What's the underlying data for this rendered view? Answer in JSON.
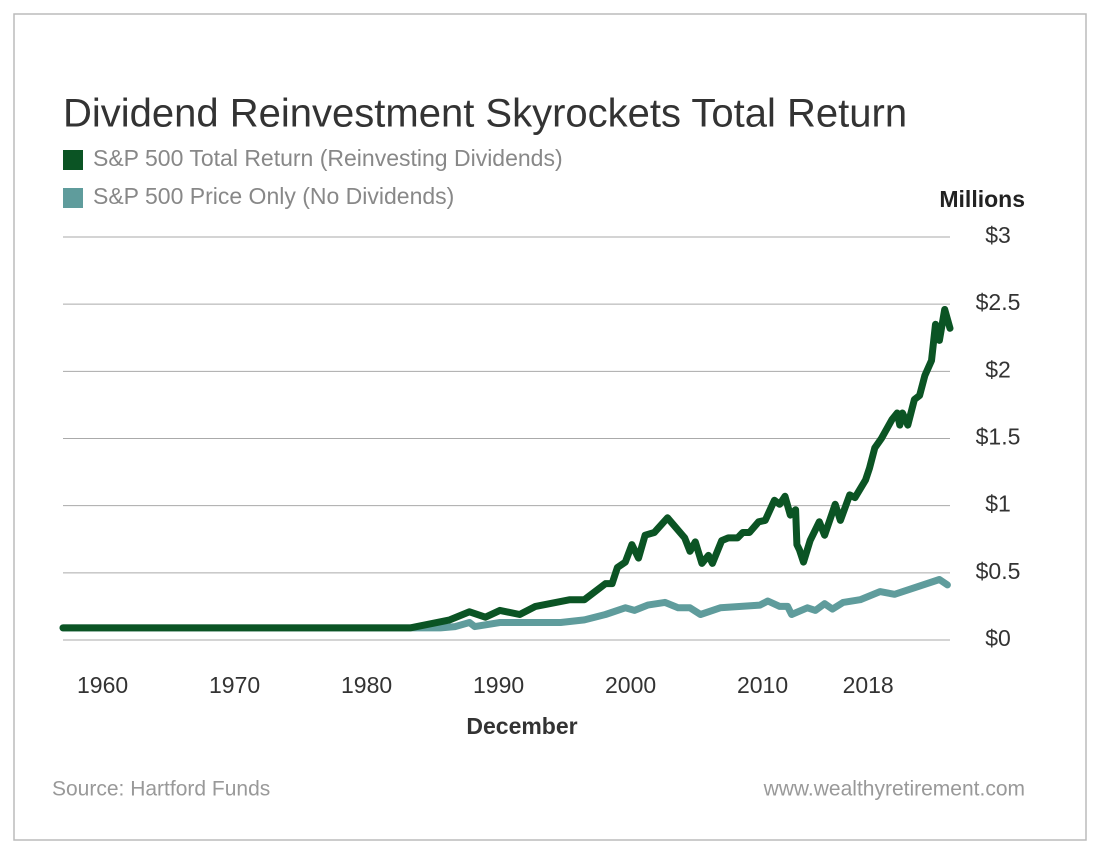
{
  "chart_data": {
    "type": "line",
    "title": "Dividend Reinvestment Skyrockets Total Return",
    "y_axis_label": "Millions",
    "x_axis_label": "December",
    "source": "Source: Hartford Funds",
    "website": "www.wealthyretirement.com",
    "legend": "top-left",
    "grid": true,
    "xlim": [
      1957,
      2024.2
    ],
    "xticks": [
      1960,
      1970,
      1980,
      1990,
      2000,
      2010,
      2018
    ],
    "ylim": [
      0,
      3
    ],
    "yticks": [
      {
        "value": 0,
        "label": "$0"
      },
      {
        "value": 0.5,
        "label": "$0.5"
      },
      {
        "value": 1,
        "label": "$1"
      },
      {
        "value": 1.5,
        "label": "$1.5"
      },
      {
        "value": 2,
        "label": "$2"
      },
      {
        "value": 2.5,
        "label": "$2.5"
      },
      {
        "value": 3,
        "label": "$3"
      }
    ],
    "series": [
      {
        "name": "S&P 500 Total Return (Reinvesting Dividends)",
        "color": "#0b5424",
        "x": [
          1957,
          1983.3,
          1986.3,
          1987.8,
          1989,
          1990.1,
          1991.6,
          1992.8,
          1995.4,
          1996.5,
          1998.1,
          1998.6,
          1999,
          1999.6,
          2000.1,
          2000.6,
          2001.1,
          2001.8,
          2002.8,
          2004.1,
          2004.5,
          2004.9,
          2005.4,
          2005.9,
          2006.2,
          2006.9,
          2007.4,
          2008.1,
          2008.5,
          2009,
          2009.7,
          2010.2,
          2010.9,
          2011.3,
          2011.7,
          2012.1,
          2012.5,
          2012.6,
          2012.8,
          2013.1,
          2013.6,
          2014.3,
          2014.7,
          2015.5,
          2015.9,
          2016.6,
          2017,
          2017.8,
          2018.1,
          2018.5,
          2019,
          2019.8,
          2020.2,
          2020.4,
          2020.6,
          2021,
          2021.5,
          2021.9,
          2022.3,
          2022.8,
          2023.1,
          2023.4,
          2023.8,
          2024.2
        ],
        "values": [
          0.09,
          0.09,
          0.15,
          0.21,
          0.17,
          0.22,
          0.19,
          0.25,
          0.3,
          0.3,
          0.42,
          0.42,
          0.54,
          0.58,
          0.71,
          0.61,
          0.78,
          0.8,
          0.91,
          0.76,
          0.66,
          0.73,
          0.57,
          0.63,
          0.57,
          0.74,
          0.76,
          0.76,
          0.8,
          0.8,
          0.88,
          0.89,
          1.04,
          1.01,
          1.07,
          0.93,
          0.97,
          0.71,
          0.67,
          0.58,
          0.74,
          0.88,
          0.78,
          1.01,
          0.89,
          1.08,
          1.06,
          1.19,
          1.28,
          1.43,
          1.5,
          1.64,
          1.69,
          1.6,
          1.69,
          1.6,
          1.79,
          1.82,
          1.97,
          2.08,
          2.35,
          2.23,
          2.46,
          2.32
        ]
      },
      {
        "name": "S&P 500 Price Only (No Dividends)",
        "color": "#5f9c9c",
        "x": [
          1957,
          1985.6,
          1986.7,
          1987.8,
          1988.2,
          1990.1,
          1994.7,
          1996.5,
          1998.1,
          1999.6,
          2000.3,
          2001.3,
          2002.6,
          2003.6,
          2004.5,
          2005.3,
          2006.8,
          2009.8,
          2010.4,
          2011.3,
          2011.9,
          2012.2,
          2013.4,
          2014,
          2014.7,
          2015.3,
          2016.1,
          2017.4,
          2018.9,
          2020,
          2023.4,
          2024
        ],
        "values": [
          0.09,
          0.09,
          0.1,
          0.13,
          0.1,
          0.13,
          0.13,
          0.15,
          0.19,
          0.24,
          0.22,
          0.26,
          0.28,
          0.24,
          0.24,
          0.19,
          0.24,
          0.26,
          0.29,
          0.25,
          0.25,
          0.19,
          0.24,
          0.22,
          0.27,
          0.23,
          0.28,
          0.3,
          0.36,
          0.34,
          0.45,
          0.41
        ]
      }
    ]
  }
}
